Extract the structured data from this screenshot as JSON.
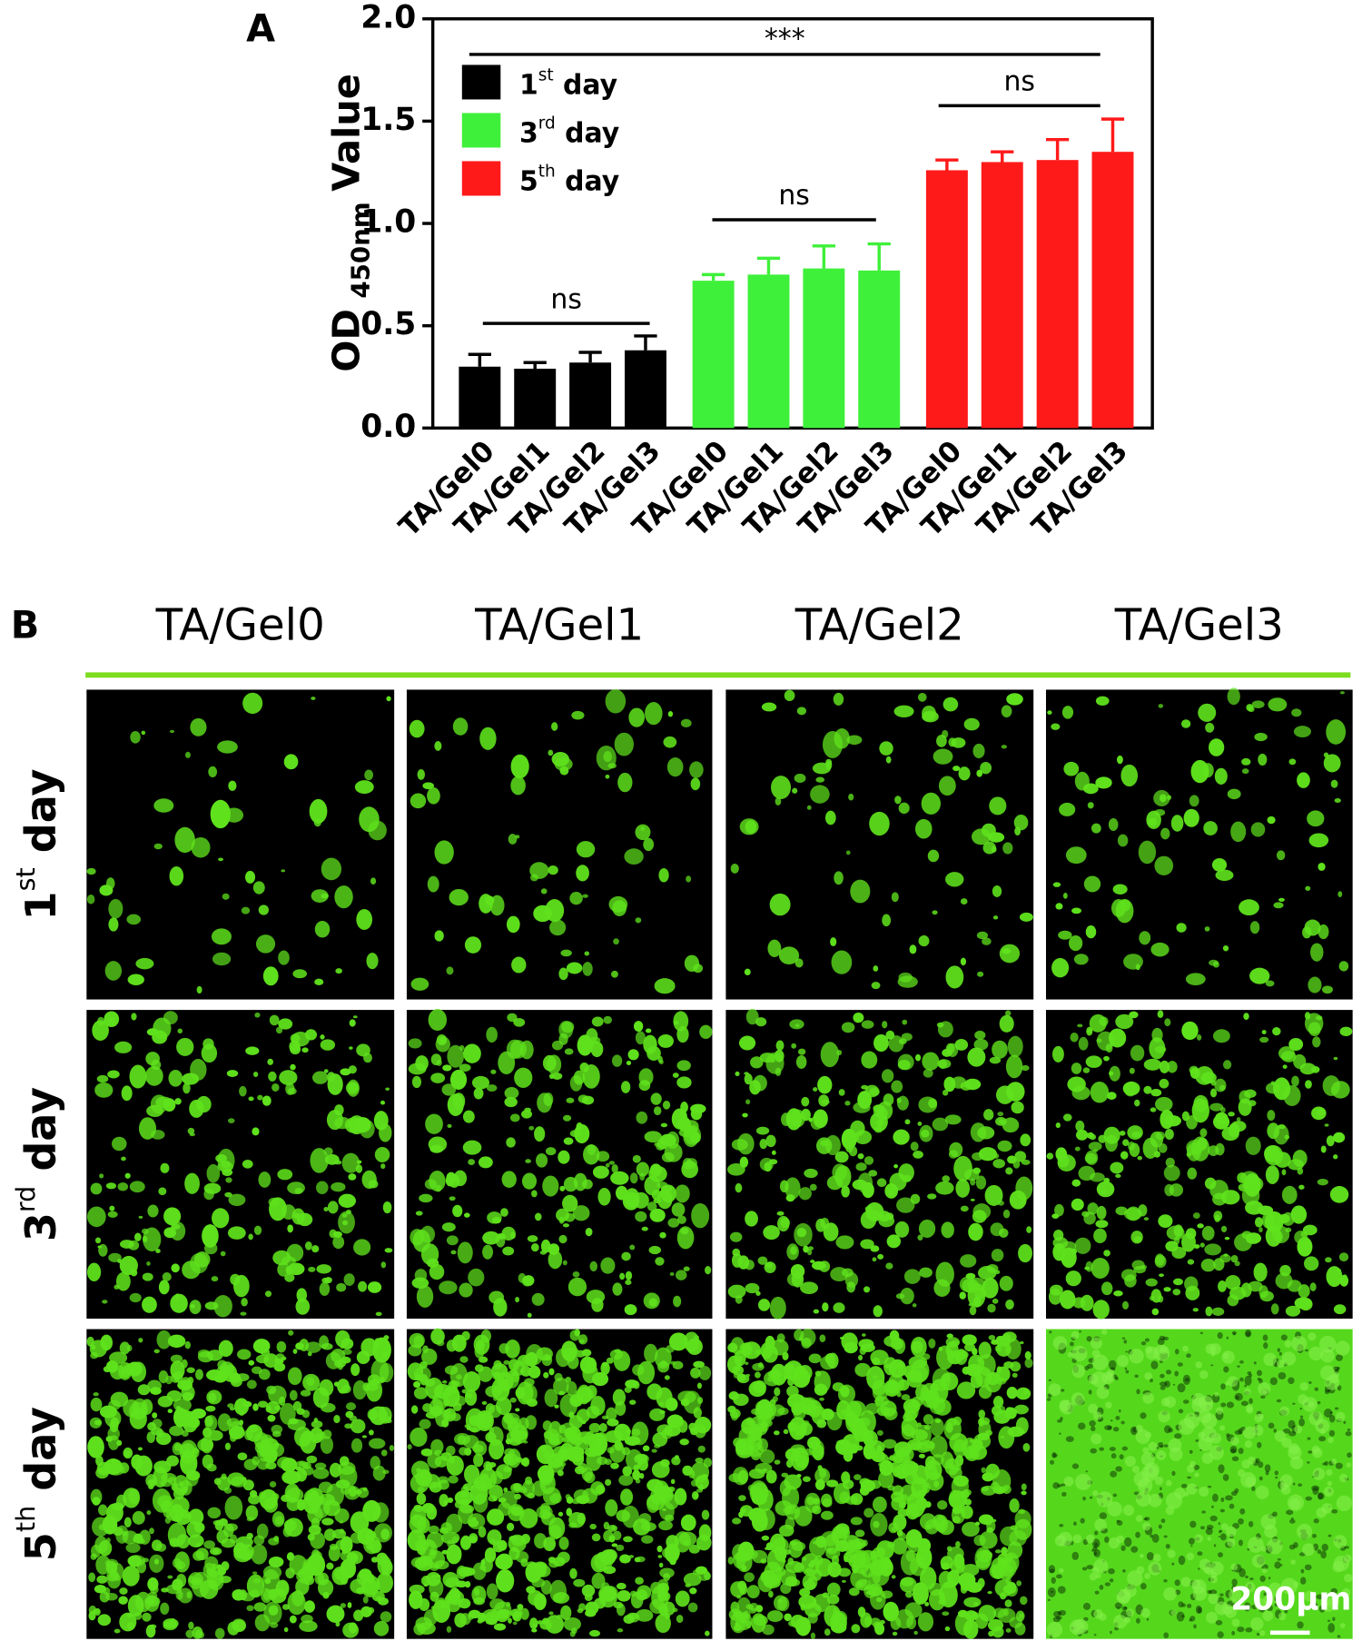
{
  "chart_data": {
    "type": "bar",
    "ylabel": {
      "main": "OD",
      "subscript": "450nm",
      "tail": "Value"
    },
    "categories": [
      "TA/Gel0",
      "TA/Gel1",
      "TA/Gel2",
      "TA/Gel3",
      "TA/Gel0",
      "TA/Gel1",
      "TA/Gel2",
      "TA/Gel3",
      "TA/Gel0",
      "TA/Gel1",
      "TA/Gel2",
      "TA/Gel3"
    ],
    "series": [
      {
        "name": "1st day",
        "color": "#000000",
        "values": [
          0.3,
          0.29,
          0.32,
          0.38,
          null,
          null,
          null,
          null,
          null,
          null,
          null,
          null
        ],
        "errors": [
          0.06,
          0.03,
          0.05,
          0.07,
          null,
          null,
          null,
          null,
          null,
          null,
          null,
          null
        ]
      },
      {
        "name": "3rd day",
        "color": "#3ff03a",
        "values": [
          null,
          null,
          null,
          null,
          0.72,
          0.75,
          0.78,
          0.77,
          null,
          null,
          null,
          null
        ],
        "errors": [
          null,
          null,
          null,
          null,
          0.03,
          0.08,
          0.11,
          0.13,
          null,
          null,
          null,
          null
        ]
      },
      {
        "name": "5th day",
        "color": "#ff1a1a",
        "values": [
          null,
          null,
          null,
          null,
          null,
          null,
          null,
          null,
          1.26,
          1.3,
          1.31,
          1.35
        ],
        "errors": [
          null,
          null,
          null,
          null,
          null,
          null,
          null,
          null,
          0.05,
          0.05,
          0.1,
          0.16
        ]
      }
    ],
    "ylim": [
      0,
      2
    ],
    "yticks": [
      {
        "value": 0,
        "label": "0.0"
      },
      {
        "value": 0.5,
        "label": "0.5"
      },
      {
        "value": 1,
        "label": "1.0"
      },
      {
        "value": 1.5,
        "label": "1.5"
      },
      {
        "value": 2,
        "label": "2.0"
      }
    ],
    "legend": "upper left",
    "annotations": [
      "***",
      "ns",
      "ns",
      "ns"
    ]
  },
  "panel_labels": [
    "A",
    "B"
  ],
  "panel_b": {
    "columns": [
      "TA/Gel0",
      "TA/Gel1",
      "TA/Gel2",
      "TA/Gel3"
    ],
    "rows": [
      "1st day",
      "3rd day",
      "5th day"
    ],
    "scale_bar": "200μm"
  }
}
